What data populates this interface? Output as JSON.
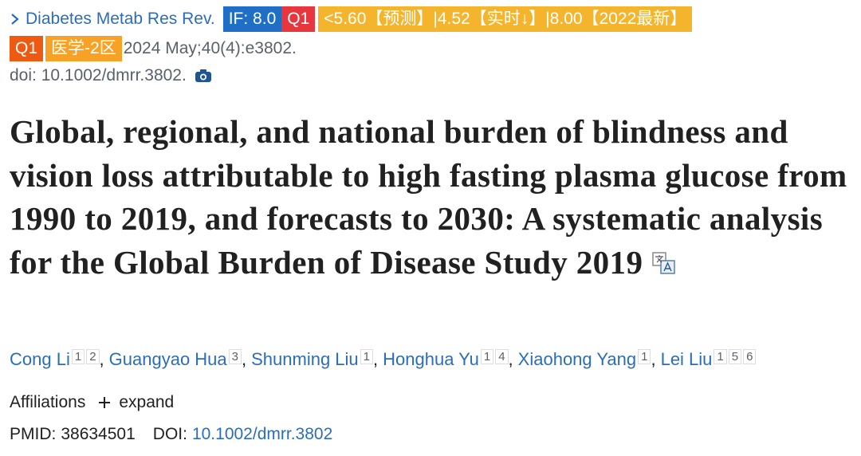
{
  "journal": {
    "name": "Diabetes Metab Res Rev.",
    "badges_line1": [
      "IF: 8.0",
      "Q1",
      "<5.60【预测】|4.52【实时↓】|8.00【2022最新】"
    ],
    "badges_line2": [
      "Q1",
      "医学-2区"
    ],
    "citation": "2024 May;40(4):e3802.",
    "doi": "doi: 10.1002/dmrr.3802."
  },
  "title": "Global, regional, and national burden of blindness and vision loss attributable to high fasting plasma glucose from 1990 to 2019, and forecasts to 2030: A systematic analysis for the Global Burden of Disease Study 2019",
  "authors": [
    {
      "name": "Cong Li",
      "affiliations": [
        "1",
        "2"
      ]
    },
    {
      "name": "Guangyao Hua",
      "affiliations": [
        "3"
      ]
    },
    {
      "name": "Shunming Liu",
      "affiliations": [
        "1"
      ]
    },
    {
      "name": "Honghua Yu",
      "affiliations": [
        "1",
        "4"
      ]
    },
    {
      "name": "Xiaohong Yang",
      "affiliations": [
        "1"
      ]
    },
    {
      "name": "Lei Liu",
      "affiliations": [
        "1",
        "5",
        "6"
      ]
    }
  ],
  "author_separator": ",",
  "affiliations": {
    "label": "Affiliations",
    "toggle": "expand"
  },
  "identifiers": {
    "pmid_label": "PMID:",
    "pmid": "38634501",
    "doi_label": "DOI:",
    "doi": "10.1002/dmrr.3802"
  }
}
